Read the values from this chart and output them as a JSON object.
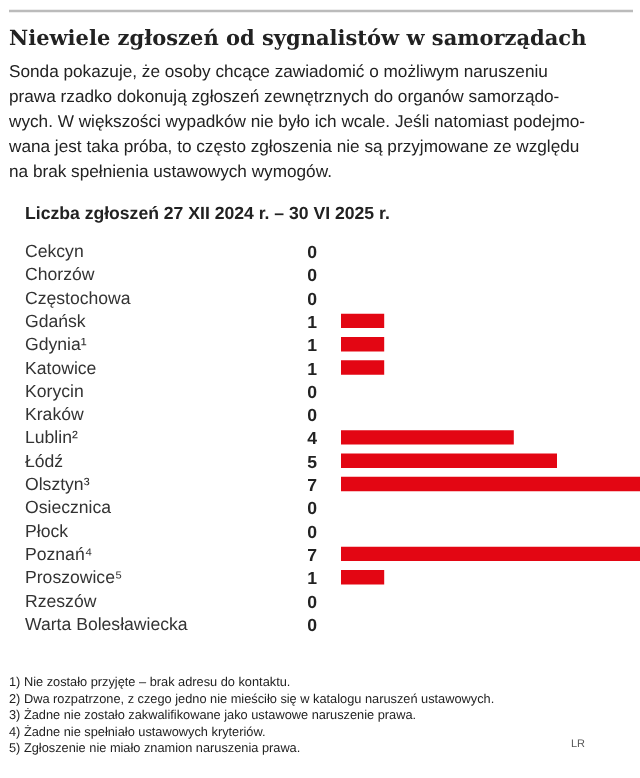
{
  "chart_data": {
    "type": "bar",
    "orientation": "horizontal",
    "title": "Niewiele zgłoszeń od sygnalistów w samorządach",
    "subtitle": "Sonda pokazuje, że osoby chcące zawiadomić o możliwym naruszeniu\nprawa rzadko dokonują zgłoszeń zewnętrznych do organów samorządo-\nwych. W większości wypadków nie było ich wcale. Jeśli natomiast podejmo-\nwana jest taka próba, to często zgłoszenia nie są przyjmowane ze względu\nna brak spełnienia ustawowych wymogów.",
    "xlabel": "Liczba zgłoszeń 27 XII 2024 r. – 30 VI 2025 r.",
    "categories": [
      "Cekcyn",
      "Chorzów",
      "Częstochowa",
      "Gdańsk",
      "Gdynia¹",
      "Katowice",
      "Korycin",
      "Kraków",
      "Lublin²",
      "Łódź",
      "Olsztyn³",
      "Osiecznica",
      "Płock",
      "Poznań⁴",
      "Proszowice⁵",
      "Rzeszów",
      "Warta Bolesławiecka"
    ],
    "values": [
      0,
      0,
      0,
      1,
      1,
      1,
      0,
      0,
      4,
      5,
      7,
      0,
      0,
      7,
      1,
      0,
      0
    ],
    "color": "#e30613",
    "data_labels": true,
    "annotations": [
      "1)  Nie zostało przyjęte – brak adresu do kontaktu.",
      "2)  Dwa rozpatrzone, z czego jedno nie mieściło się w katalogu naruszeń ustawowych.",
      "3)  Żadne nie zostało zakwalifikowane jako ustawowe naruszenie prawa.",
      "4)  Żadne nie spełniało ustawowych kryteriów.",
      "5)  Zgłoszenie nie miało znamion naruszenia prawa.",
      "LR"
    ]
  }
}
